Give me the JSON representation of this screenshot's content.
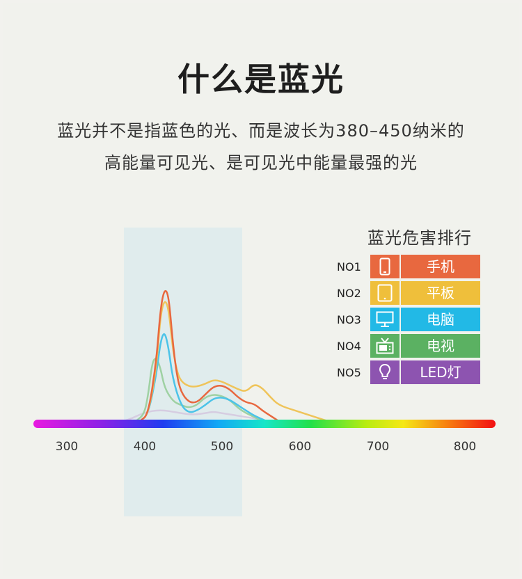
{
  "header": {
    "title": "什么是蓝光",
    "subtitle_line1": "蓝光并不是指蓝色的光、而是波长为380–450纳米的",
    "subtitle_line2": "高能量可见光、是可见光中能量最强的光"
  },
  "ranking": {
    "title": "蓝光危害排行",
    "items": [
      {
        "no": "NO1",
        "label": "手机",
        "icon": "phone-icon",
        "color": "#e8683f"
      },
      {
        "no": "NO2",
        "label": "平板",
        "icon": "tablet-icon",
        "color": "#efbf3b"
      },
      {
        "no": "NO3",
        "label": "电脑",
        "icon": "monitor-icon",
        "color": "#22b9e6"
      },
      {
        "no": "NO4",
        "label": "电视",
        "icon": "tv-icon",
        "color": "#5bb162"
      },
      {
        "no": "NO5",
        "label": "LED灯",
        "icon": "bulb-icon",
        "color": "#8d54b0"
      }
    ]
  },
  "chart_data": {
    "type": "line",
    "title": "",
    "xlabel": "",
    "ylabel": "",
    "x_ticks": [
      "300",
      "400",
      "500",
      "600",
      "700",
      "800"
    ],
    "xlim": [
      280,
      830
    ],
    "ylim": [
      0,
      1.05
    ],
    "highlight_band": [
      380,
      530
    ],
    "spectrum_bar": true,
    "series": [
      {
        "color": "#e8683f",
        "x": [
          390,
          400,
          410,
          415,
          420,
          425,
          430,
          435,
          440,
          450,
          460,
          470,
          480,
          490,
          500,
          510,
          520,
          530,
          540,
          550,
          560
        ],
        "values": [
          0.0,
          0.05,
          0.45,
          0.85,
          1.0,
          0.95,
          0.6,
          0.35,
          0.22,
          0.14,
          0.14,
          0.2,
          0.26,
          0.27,
          0.24,
          0.18,
          0.14,
          0.13,
          0.08,
          0.04,
          0.0
        ]
      },
      {
        "color": "#efc45a",
        "x": [
          390,
          400,
          410,
          415,
          420,
          425,
          430,
          435,
          440,
          450,
          460,
          470,
          480,
          490,
          500,
          510,
          520,
          530,
          540,
          550,
          560,
          580,
          600,
          620
        ],
        "values": [
          0.0,
          0.05,
          0.4,
          0.8,
          0.92,
          0.85,
          0.55,
          0.38,
          0.3,
          0.26,
          0.26,
          0.28,
          0.31,
          0.3,
          0.27,
          0.24,
          0.22,
          0.28,
          0.25,
          0.18,
          0.12,
          0.08,
          0.04,
          0.0
        ]
      },
      {
        "color": "#4cc3e8",
        "x": [
          390,
          400,
          410,
          415,
          420,
          425,
          430,
          440,
          450,
          460,
          470,
          480,
          490,
          500,
          510,
          520,
          530,
          545
        ],
        "values": [
          0.0,
          0.05,
          0.35,
          0.6,
          0.68,
          0.55,
          0.32,
          0.12,
          0.06,
          0.08,
          0.12,
          0.17,
          0.18,
          0.16,
          0.12,
          0.08,
          0.04,
          0.0
        ]
      },
      {
        "color": "#9fd1a3",
        "x": [
          385,
          395,
          400,
          405,
          410,
          415,
          420,
          430,
          440,
          450,
          460,
          470,
          480,
          490,
          500,
          510,
          520,
          530,
          540
        ],
        "values": [
          0.0,
          0.05,
          0.2,
          0.45,
          0.48,
          0.4,
          0.25,
          0.15,
          0.12,
          0.1,
          0.12,
          0.18,
          0.2,
          0.19,
          0.16,
          0.1,
          0.06,
          0.03,
          0.0
        ]
      },
      {
        "color": "#d6cde1",
        "x": [
          370,
          380,
          390,
          400,
          410,
          420,
          430,
          440,
          450,
          460,
          470,
          480,
          490,
          500,
          510,
          520,
          530,
          545
        ],
        "values": [
          0.0,
          0.02,
          0.05,
          0.07,
          0.08,
          0.08,
          0.07,
          0.06,
          0.05,
          0.05,
          0.06,
          0.07,
          0.06,
          0.05,
          0.04,
          0.03,
          0.02,
          0.0
        ]
      }
    ]
  }
}
